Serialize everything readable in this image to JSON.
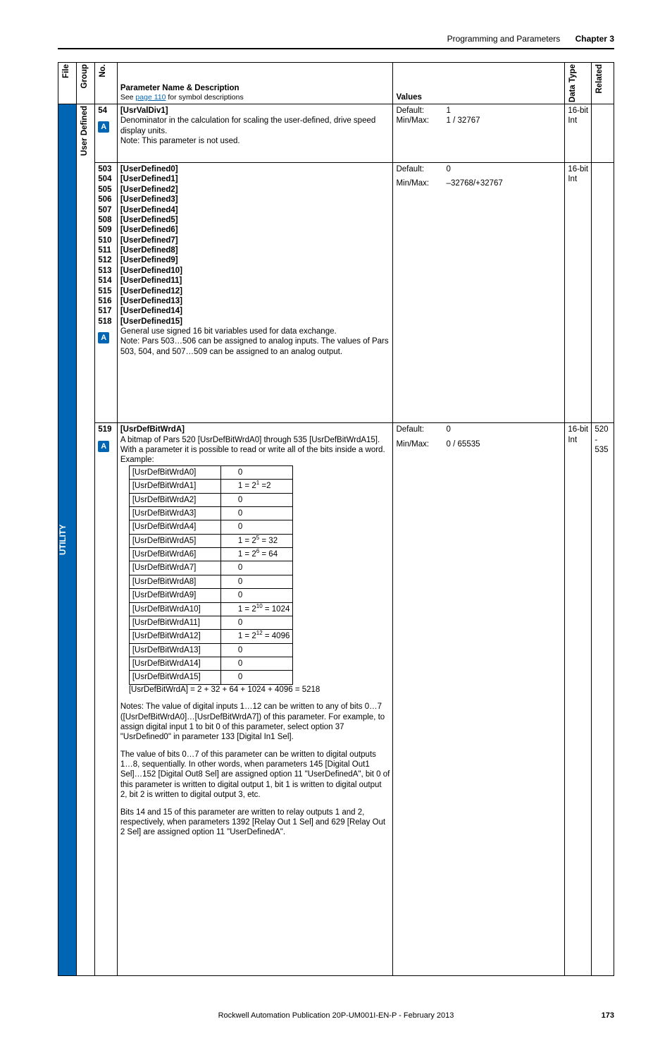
{
  "header": {
    "title": "Programming and Parameters",
    "chapter": "Chapter 3"
  },
  "columns": {
    "file": "File",
    "group": "Group",
    "no": "No.",
    "name": "Parameter Name & Description",
    "name_sub_prefix": "See ",
    "name_sub_link": "page 110",
    "name_sub_suffix": " for symbol descriptions",
    "values": "Values",
    "datatype": "Data Type",
    "related": "Related"
  },
  "file_label": "UTILITY",
  "group_label": "User Defined",
  "badge": "A",
  "row54": {
    "no": "54",
    "name": "[UsrValDiv1]",
    "desc": "Denominator in the calculation for scaling the user-defined, drive speed display units.",
    "note": "Note: This parameter is not used.",
    "default_label": "Default:",
    "default_val": "1",
    "minmax_label": "Min/Max:",
    "minmax_val": "1 / 32767",
    "dt1": "16-bit",
    "dt2": "Int"
  },
  "row503": {
    "nos": [
      "503",
      "504",
      "505",
      "506",
      "507",
      "508",
      "509",
      "510",
      "511",
      "512",
      "513",
      "514",
      "515",
      "516",
      "517",
      "518"
    ],
    "names": [
      "[UserDefined0]",
      "[UserDefined1]",
      "[UserDefined2]",
      "[UserDefined3]",
      "[UserDefined4]",
      "[UserDefined5]",
      "[UserDefined6]",
      "[UserDefined7]",
      "[UserDefined8]",
      "[UserDefined9]",
      "[UserDefined10]",
      "[UserDefined11]",
      "[UserDefined12]",
      "[UserDefined13]",
      "[UserDefined14]",
      "[UserDefined15]"
    ],
    "desc": "General use signed 16 bit variables used for data exchange.",
    "note": "Note: Pars 503…506 can be assigned to analog inputs. The values of Pars 503, 504, and 507…509 can be assigned to an analog output.",
    "default_label": "Default:",
    "default_val": "0",
    "minmax_label": "Min/Max:",
    "minmax_val": "–32768/+32767",
    "dt1": "16-bit",
    "dt2": "Int"
  },
  "row519": {
    "no": "519",
    "name": "[UsrDefBitWrdA]",
    "desc": "A bitmap of Pars 520 [UsrDefBitWrdA0] through 535 [UsrDefBitWrdA15]. With a parameter it is possible to read or write all of the bits inside a word.",
    "example_label": "Example:",
    "bit_rows": [
      {
        "n": "[UsrDefBitWrdA0]",
        "v": "0",
        "e": ""
      },
      {
        "n": "[UsrDefBitWrdA1]",
        "v": "",
        "e": "1 = 2<sup>1</sup> =2"
      },
      {
        "n": "[UsrDefBitWrdA2]",
        "v": "0",
        "e": ""
      },
      {
        "n": "[UsrDefBitWrdA3]",
        "v": "0",
        "e": ""
      },
      {
        "n": "[UsrDefBitWrdA4]",
        "v": "0",
        "e": ""
      },
      {
        "n": "[UsrDefBitWrdA5]",
        "v": "",
        "e": "1 = 2<sup>5</sup> = 32"
      },
      {
        "n": "[UsrDefBitWrdA6]",
        "v": "",
        "e": "1 = 2<sup>6</sup> = 64"
      },
      {
        "n": "[UsrDefBitWrdA7]",
        "v": "0",
        "e": ""
      },
      {
        "n": "[UsrDefBitWrdA8]",
        "v": "0",
        "e": ""
      },
      {
        "n": "[UsrDefBitWrdA9]",
        "v": "0",
        "e": ""
      },
      {
        "n": "[UsrDefBitWrdA10]",
        "v": "",
        "e": "1 = 2<sup>10</sup> = 1024"
      },
      {
        "n": "[UsrDefBitWrdA11]",
        "v": "0",
        "e": ""
      },
      {
        "n": "[UsrDefBitWrdA12]",
        "v": "",
        "e": "1 = 2<sup>12</sup> = 4096"
      },
      {
        "n": "[UsrDefBitWrdA13]",
        "v": "0",
        "e": ""
      },
      {
        "n": "[UsrDefBitWrdA14]",
        "v": "0",
        "e": ""
      },
      {
        "n": "[UsrDefBitWrdA15]",
        "v": "0",
        "e": ""
      }
    ],
    "sum": "[UsrDefBitWrdA] = 2 + 32 + 64 + 1024 + 4096 = 5218",
    "notes1": "Notes: The value of digital inputs 1…12 can be written to any of bits 0…7 ([UsrDefBitWrdA0]…[UsrDefBitWrdA7]) of this parameter. For example, to assign digital input 1 to bit 0 of this parameter, select option 37 \"UsrDefined0\" in parameter 133 [Digital In1 Sel].",
    "notes2": "The value of bits 0…7 of this parameter can be written to digital outputs 1…8, sequentially. In other words, when parameters 145 [Digital Out1 Sel]…152 [Digital Out8 Sel] are assigned option 11 \"UserDefinedA\", bit 0 of this parameter is written to digital output 1, bit 1 is written to digital output 2, bit 2 is written to digital output 3, etc.",
    "notes3": "Bits 14 and 15 of this parameter are written to relay outputs 1 and 2, respectively, when parameters 1392 [Relay Out 1 Sel] and 629 [Relay Out 2 Sel] are assigned option 11 \"UserDefinedA\".",
    "default_label": "Default:",
    "default_val": "0",
    "minmax_label": "Min/Max:",
    "minmax_val": "0 / 65535",
    "dt1": "16-bit",
    "dt2": "Int",
    "related": "520 - 535"
  },
  "footer": {
    "pub": "Rockwell Automation Publication 20P-UM001I-EN-P - February 2013",
    "page": "173"
  }
}
